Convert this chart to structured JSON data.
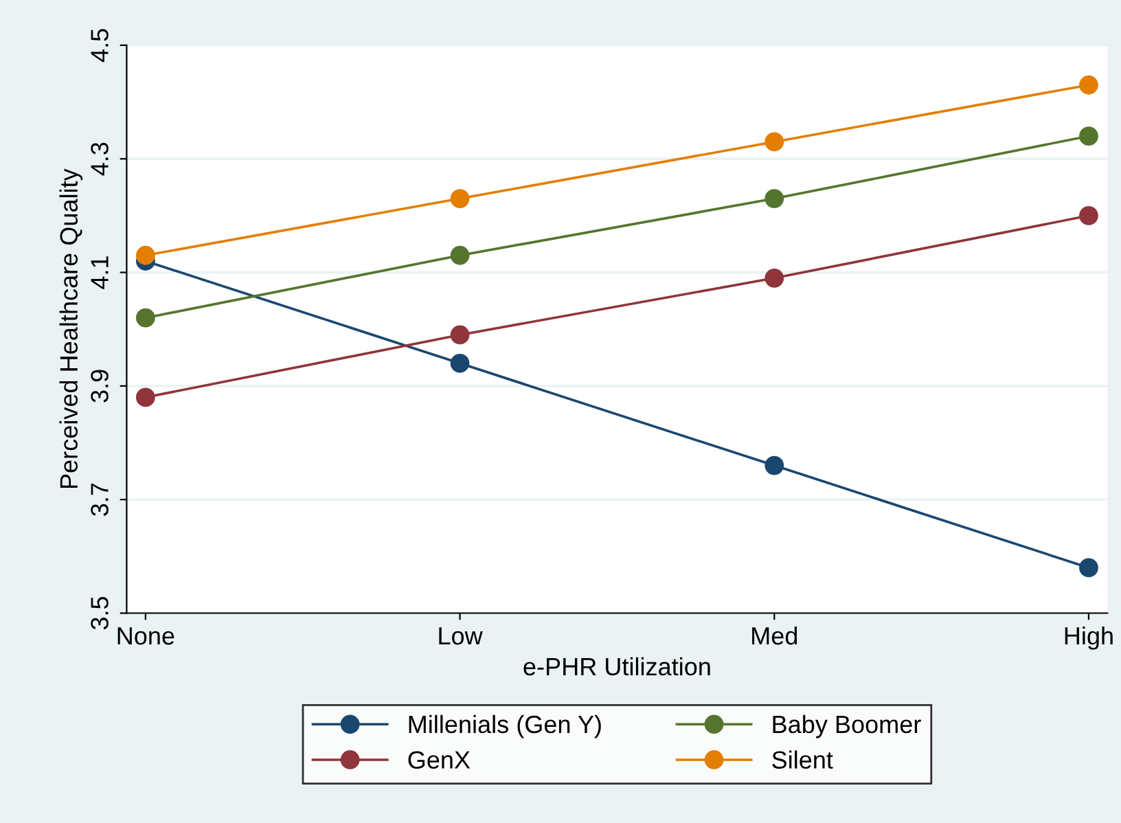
{
  "chart_data": {
    "type": "line",
    "xlabel": "e-PHR Utilization",
    "ylabel": "Perceived Healthcare Quality",
    "categories": [
      "None",
      "Low",
      "Med",
      "High"
    ],
    "series": [
      {
        "name": "Millenials (Gen Y)",
        "color": "#1a476f",
        "values": [
          4.12,
          3.94,
          3.76,
          3.58
        ]
      },
      {
        "name": "GenX",
        "color": "#90353b",
        "values": [
          3.88,
          3.99,
          4.09,
          4.2
        ]
      },
      {
        "name": "Baby Boomer",
        "color": "#55752f",
        "values": [
          4.02,
          4.13,
          4.23,
          4.34
        ]
      },
      {
        "name": "Silent",
        "color": "#e37e00",
        "values": [
          4.13,
          4.23,
          4.33,
          4.43
        ]
      }
    ],
    "ylim": [
      3.5,
      4.5
    ],
    "yticks": [
      3.5,
      3.7,
      3.9,
      4.1,
      4.3,
      4.5
    ],
    "grid": "y",
    "legend": "bottom",
    "marker": "circle",
    "line_style": "solid"
  }
}
